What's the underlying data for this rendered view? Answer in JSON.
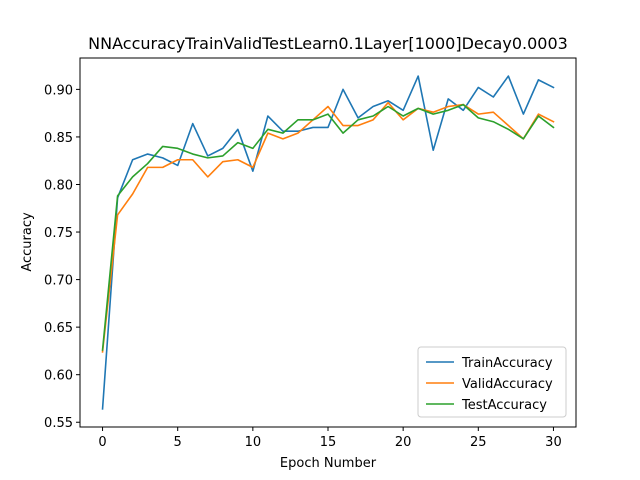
{
  "chart_data": {
    "type": "line",
    "title": "NNAccuracyTrainValidTestLearn0.1Layer[1000]Decay0.0003",
    "xlabel": "Epoch Number",
    "ylabel": "Accuracy",
    "xlim": [
      -1.5,
      31.5
    ],
    "ylim": [
      0.545,
      0.933
    ],
    "xticks": [
      0,
      5,
      10,
      15,
      20,
      25,
      30
    ],
    "yticks": [
      0.55,
      0.6,
      0.65,
      0.7,
      0.75,
      0.8,
      0.85,
      0.9
    ],
    "ytick_labels": [
      "0.55",
      "0.60",
      "0.65",
      "0.70",
      "0.75",
      "0.80",
      "0.85",
      "0.90"
    ],
    "grid": false,
    "legend_position": "bottom-right",
    "x": [
      0,
      1,
      2,
      3,
      4,
      5,
      6,
      7,
      8,
      9,
      10,
      11,
      12,
      13,
      14,
      15,
      16,
      17,
      18,
      19,
      20,
      21,
      22,
      23,
      24,
      25,
      26,
      27,
      28,
      29,
      30
    ],
    "series": [
      {
        "name": "TrainAccuracy",
        "color": "#1f77b4",
        "values": [
          0.564,
          0.786,
          0.826,
          0.832,
          0.828,
          0.82,
          0.864,
          0.83,
          0.838,
          0.858,
          0.814,
          0.872,
          0.856,
          0.856,
          0.86,
          0.86,
          0.9,
          0.87,
          0.882,
          0.888,
          0.878,
          0.914,
          0.836,
          0.89,
          0.878,
          0.902,
          0.892,
          0.914,
          0.874,
          0.91,
          0.902
        ]
      },
      {
        "name": "ValidAccuracy",
        "color": "#ff7f0e",
        "values": [
          0.624,
          0.768,
          0.79,
          0.818,
          0.818,
          0.826,
          0.826,
          0.808,
          0.824,
          0.826,
          0.818,
          0.854,
          0.848,
          0.854,
          0.868,
          0.882,
          0.862,
          0.862,
          0.868,
          0.886,
          0.868,
          0.88,
          0.876,
          0.882,
          0.884,
          0.874,
          0.876,
          0.862,
          0.848,
          0.874,
          0.866
        ]
      },
      {
        "name": "TestAccuracy",
        "color": "#2ca02c",
        "values": [
          0.626,
          0.788,
          0.808,
          0.822,
          0.84,
          0.838,
          0.832,
          0.828,
          0.83,
          0.844,
          0.838,
          0.858,
          0.854,
          0.868,
          0.868,
          0.874,
          0.854,
          0.868,
          0.872,
          0.882,
          0.872,
          0.88,
          0.874,
          0.878,
          0.884,
          0.87,
          0.866,
          0.858,
          0.848,
          0.872,
          0.86
        ]
      }
    ]
  }
}
